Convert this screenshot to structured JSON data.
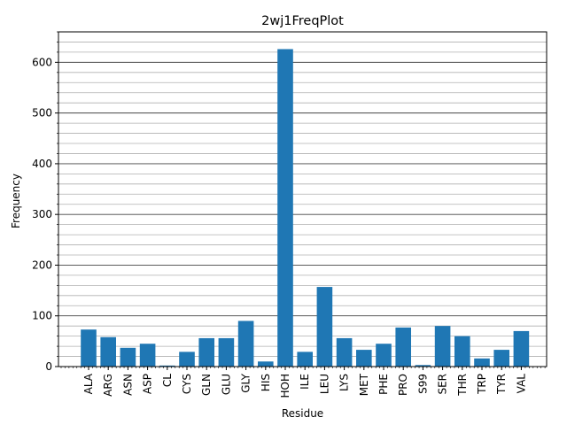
{
  "chart_data": {
    "type": "bar",
    "title": "2wj1FreqPlot",
    "xlabel": "Residue",
    "ylabel": "Frequency",
    "categories": [
      "ALA",
      "ARG",
      "ASN",
      "ASP",
      "CL",
      "CYS",
      "GLN",
      "GLU",
      "GLY",
      "HIS",
      "HOH",
      "ILE",
      "LEU",
      "LYS",
      "MET",
      "PHE",
      "PRO",
      "S99",
      "SER",
      "THR",
      "TRP",
      "TYR",
      "VAL"
    ],
    "values": [
      73,
      58,
      37,
      45,
      2,
      29,
      56,
      56,
      90,
      10,
      626,
      29,
      157,
      56,
      33,
      45,
      77,
      3,
      80,
      60,
      16,
      33,
      70
    ],
    "ylim": [
      0,
      660
    ],
    "yticks": [
      0,
      100,
      200,
      300,
      400,
      500,
      600
    ],
    "grid": true,
    "bar_color": "#1f77b4",
    "major_grid_color": "#444444",
    "minor_grid_color": "#b0b0b0"
  }
}
